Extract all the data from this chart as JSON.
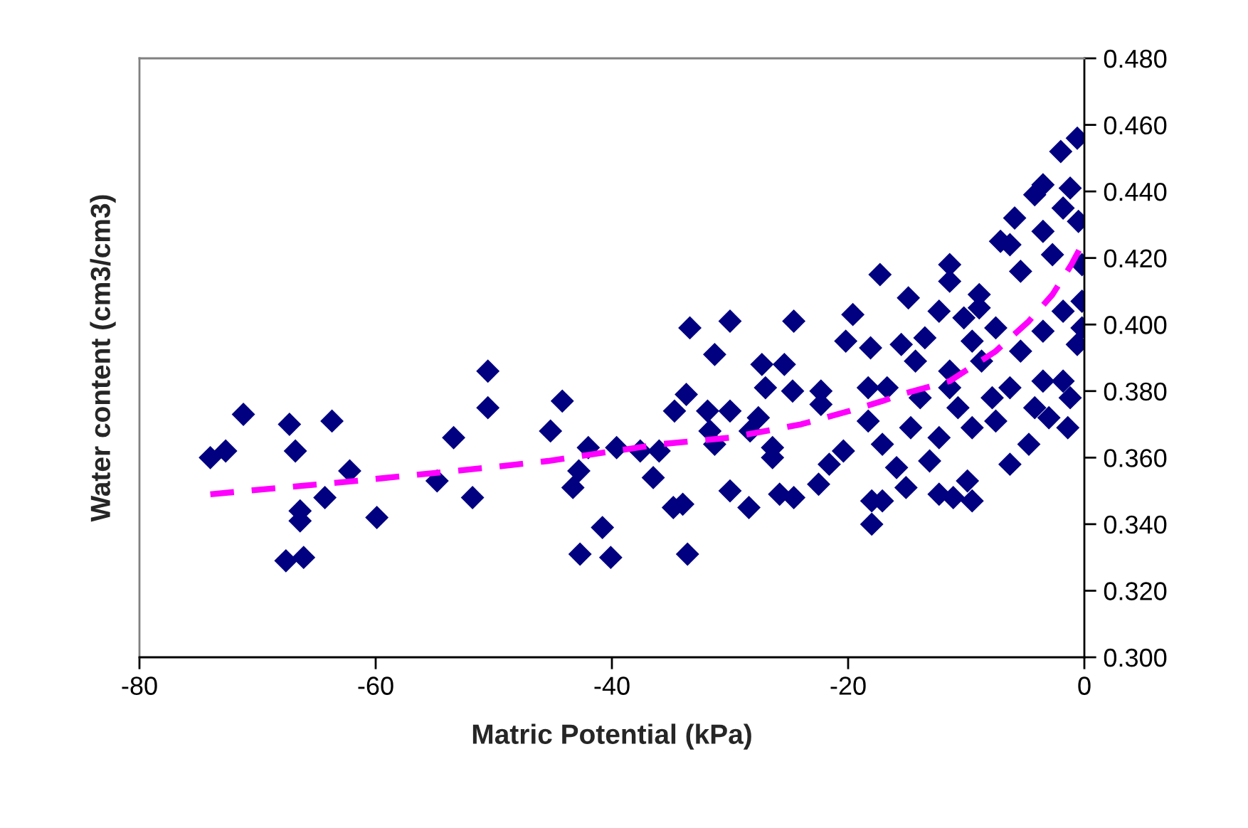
{
  "chart_data": {
    "type": "scatter",
    "xlabel": "Matric Potential (kPa)",
    "ylabel": "Water content (cm3/cm3)",
    "xlim": [
      -80,
      0
    ],
    "xticks": [
      -80,
      -60,
      -40,
      -20,
      0
    ],
    "ylim": [
      0.3,
      0.48
    ],
    "yticks": [
      {
        "value": 0.3,
        "label": "0.300"
      },
      {
        "value": 0.32,
        "label": "0.320"
      },
      {
        "value": 0.34,
        "label": "0.340"
      },
      {
        "value": 0.36,
        "label": "0.360"
      },
      {
        "value": 0.38,
        "label": "0.380"
      },
      {
        "value": 0.4,
        "label": "0.400"
      },
      {
        "value": 0.42,
        "label": "0.420"
      },
      {
        "value": 0.44,
        "label": "0.440"
      },
      {
        "value": 0.46,
        "label": "0.460"
      },
      {
        "value": 0.48,
        "label": "0.480"
      }
    ],
    "grid": false,
    "series": [
      {
        "color": "#000080",
        "marker": "diamond",
        "x": [
          -74.0,
          -72.7,
          -71.2,
          -67.3,
          -66.8,
          -63.7,
          -62.2,
          -64.3,
          -66.4,
          -66.4,
          -59.9,
          -67.6,
          -66.1,
          -53.4,
          -50.5,
          -50.5,
          -54.8,
          -51.8,
          -45.2,
          -44.2,
          -33.4,
          -30.0,
          -24.6,
          -19.6,
          -31.3,
          -20.2,
          -18.1,
          -27.3,
          -25.4,
          -27.0,
          -24.7,
          -22.3,
          -22.3,
          -18.3,
          -33.7,
          -34.7,
          -31.9,
          -30.0,
          -31.7,
          -27.6,
          -28.3,
          -31.3,
          -26.4,
          -26.4,
          -42.0,
          -39.6,
          -37.6,
          -36.0,
          -42.8,
          -43.3,
          -36.5,
          -34.8,
          -34.0,
          -30.0,
          -28.4,
          -25.8,
          -24.6,
          -22.5,
          -40.8,
          -42.7,
          -40.1,
          -33.6,
          -21.6,
          -20.4,
          -18.0,
          -18.0,
          -0.6,
          -2.0,
          -1.2,
          -3.5,
          -4.2,
          -0.5,
          -5.9,
          -7.1,
          -6.3,
          -0.2,
          -17.3,
          -11.4,
          -11.4,
          -14.9,
          -8.9,
          -5.4,
          -2.7,
          -3.5,
          -1.8,
          -8.9,
          -12.3,
          -10.2,
          -0.2,
          -0.6,
          -15.5,
          -13.5,
          -7.5,
          -14.3,
          -8.7,
          -16.7,
          -11.4,
          -1.8,
          -1.2,
          -6.3,
          -4.2,
          -18.3,
          -17.1,
          -14.7,
          -12.3,
          -9.5,
          -7.5,
          -4.7,
          -6.3,
          -15.9,
          -13.1,
          -9.9,
          -15.1,
          -17.1,
          -12.3,
          -11.1,
          -9.5,
          -3.0,
          -1.4,
          -3.5,
          -5.4,
          -3.5,
          -1.8,
          -9.5,
          -11.4,
          -7.8,
          -10.7,
          -13.9,
          -0.2
        ],
        "values": [
          0.36,
          0.362,
          0.373,
          0.37,
          0.362,
          0.371,
          0.356,
          0.348,
          0.344,
          0.341,
          0.342,
          0.329,
          0.33,
          0.366,
          0.386,
          0.375,
          0.353,
          0.348,
          0.368,
          0.377,
          0.399,
          0.401,
          0.401,
          0.403,
          0.391,
          0.395,
          0.393,
          0.388,
          0.388,
          0.381,
          0.38,
          0.38,
          0.376,
          0.381,
          0.379,
          0.374,
          0.374,
          0.374,
          0.368,
          0.372,
          0.368,
          0.364,
          0.363,
          0.36,
          0.363,
          0.363,
          0.362,
          0.362,
          0.356,
          0.351,
          0.354,
          0.345,
          0.346,
          0.35,
          0.345,
          0.349,
          0.348,
          0.352,
          0.339,
          0.331,
          0.33,
          0.331,
          0.358,
          0.362,
          0.347,
          0.34,
          0.456,
          0.452,
          0.441,
          0.442,
          0.439,
          0.431,
          0.432,
          0.425,
          0.424,
          0.418,
          0.415,
          0.418,
          0.413,
          0.408,
          0.409,
          0.416,
          0.421,
          0.428,
          0.435,
          0.405,
          0.404,
          0.402,
          0.399,
          0.394,
          0.394,
          0.396,
          0.399,
          0.389,
          0.389,
          0.381,
          0.381,
          0.383,
          0.378,
          0.381,
          0.375,
          0.371,
          0.364,
          0.369,
          0.366,
          0.369,
          0.371,
          0.364,
          0.358,
          0.357,
          0.359,
          0.353,
          0.351,
          0.347,
          0.349,
          0.348,
          0.347,
          0.372,
          0.369,
          0.383,
          0.392,
          0.398,
          0.404,
          0.395,
          0.386,
          0.378,
          0.375,
          0.378,
          0.407
        ]
      },
      {
        "type": "line",
        "color": "#ff00ff",
        "line_style": "dashed",
        "marker": "none",
        "x": [
          -74.0,
          -61.7,
          -50.5,
          -45.4,
          -36.0,
          -30.0,
          -24.0,
          -19.9,
          -17.1,
          -15.5,
          -11.4,
          -7.5,
          -4.7,
          -2.7,
          -1.1,
          -0.2
        ],
        "values": [
          0.349,
          0.353,
          0.357,
          0.359,
          0.364,
          0.366,
          0.37,
          0.374,
          0.377,
          0.379,
          0.383,
          0.392,
          0.401,
          0.409,
          0.418,
          0.424
        ]
      }
    ]
  }
}
